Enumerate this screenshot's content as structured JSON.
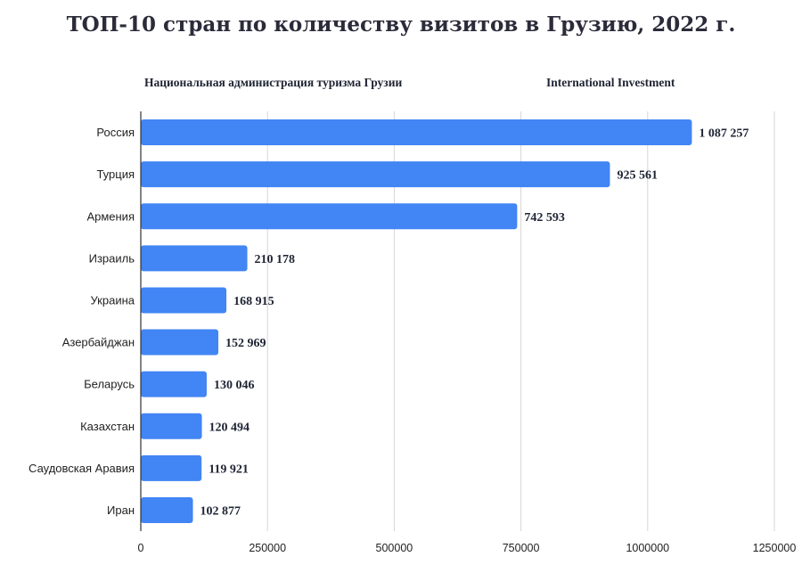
{
  "source_left": "Национальная администрация туризма Грузии",
  "source_right": "International Investment",
  "chart_data": {
    "type": "bar",
    "orientation": "horizontal",
    "title": "ТОП-10 стран по количеству визитов в Грузию, 2022 г.",
    "categories": [
      "Россия",
      "Турция",
      "Армения",
      "Израиль",
      "Украина",
      "Азербайджан",
      "Беларусь",
      "Казахстан",
      "Саудовская Аравия",
      "Иран"
    ],
    "values": [
      1087257,
      925561,
      742593,
      210178,
      168915,
      152969,
      130046,
      120494,
      119921,
      102877
    ],
    "value_labels": [
      "1 087 257",
      "925 561",
      "742 593",
      "210 178",
      "168 915",
      "152 969",
      "130 046",
      "120 494",
      "119 921",
      "102 877"
    ],
    "xlim": [
      0,
      1250000
    ],
    "x_ticks": [
      0,
      250000,
      500000,
      750000,
      1000000,
      1250000
    ],
    "x_tick_labels": [
      "0",
      "250000",
      "500000",
      "750000",
      "1000000",
      "1250000"
    ],
    "grid": "vertical",
    "bar_color": "#4285f4"
  }
}
